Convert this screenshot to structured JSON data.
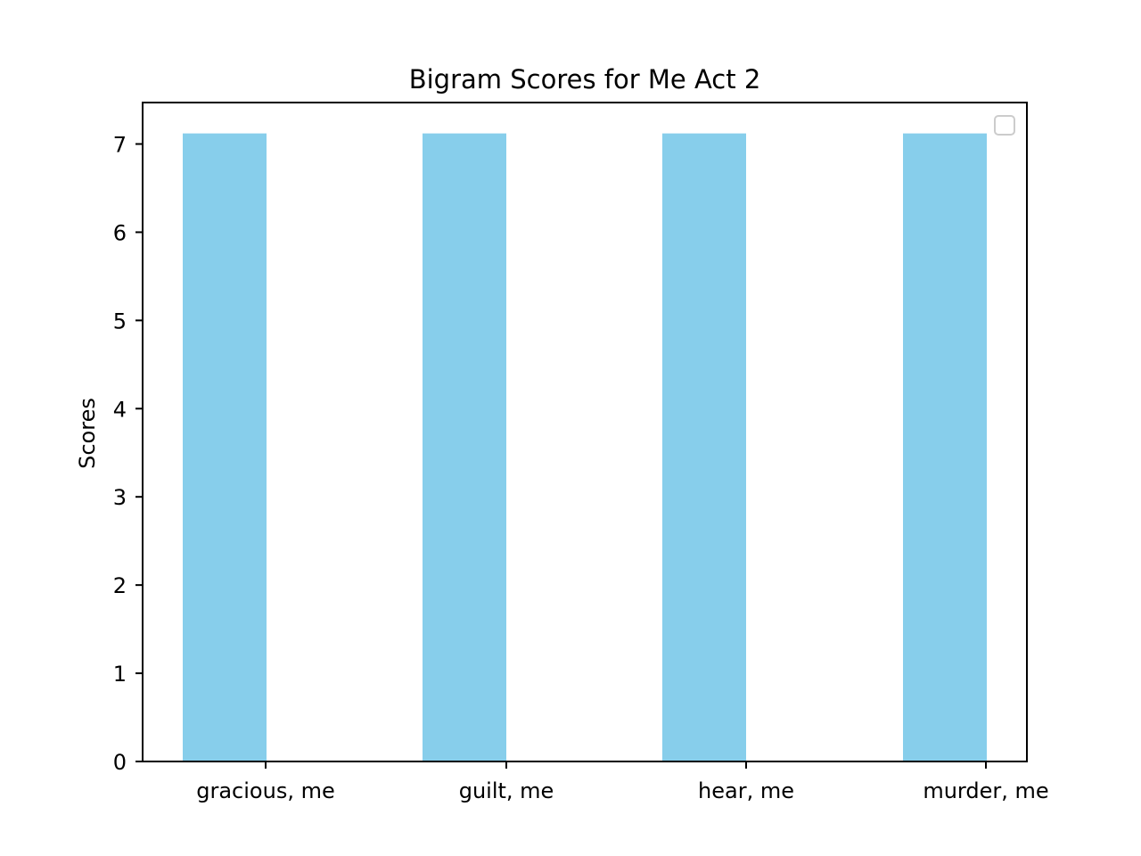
{
  "chart_data": {
    "type": "bar",
    "title": "Bigram Scores for Me Act 2",
    "xlabel": "",
    "ylabel": "Scores",
    "categories": [
      "gracious, me",
      "guilt, me",
      "hear, me",
      "murder, me"
    ],
    "values": [
      7.12,
      7.12,
      7.12,
      7.12
    ],
    "ylim": [
      0,
      7.47
    ],
    "yticks": [
      0,
      1,
      2,
      3,
      4,
      5,
      6,
      7
    ],
    "bar_color": "#87ceeb",
    "grid": false,
    "legend": {
      "placement": "upper right",
      "entries": []
    }
  }
}
